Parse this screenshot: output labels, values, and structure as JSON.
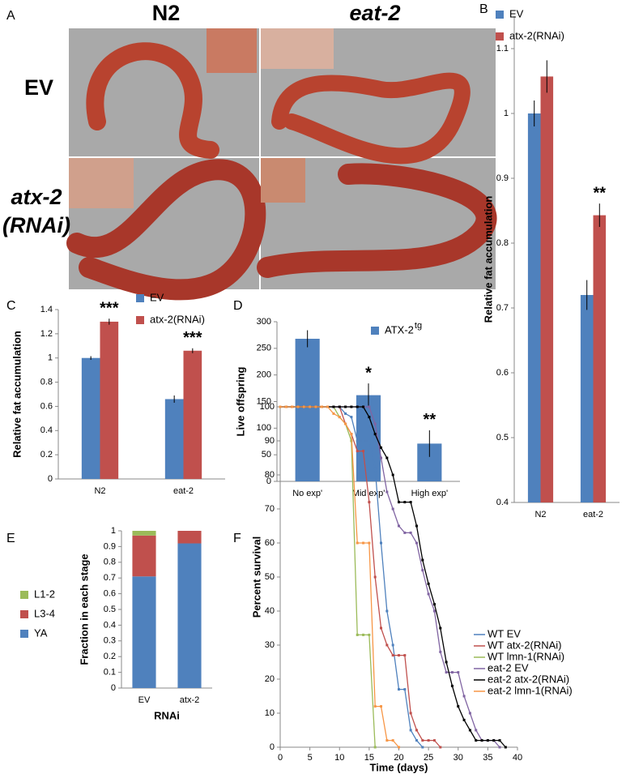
{
  "panel_a": {
    "panel": "A",
    "columns": [
      "N2",
      "eat-2"
    ],
    "rows": [
      [
        "EV"
      ],
      [
        "atx-2",
        "(RNAi)"
      ]
    ]
  },
  "chart_data": [
    {
      "panel": "B",
      "type": "bar",
      "ylabel": "Relative fat accumulation",
      "categories": [
        "N2",
        "eat-2"
      ],
      "series": [
        {
          "name": "EV",
          "color": "#4f81bd",
          "values": [
            1.0,
            0.72
          ],
          "errors": [
            0.02,
            0.023
          ]
        },
        {
          "name": "atx-2(RNAi)",
          "color": "#c0504d",
          "values": [
            1.057,
            0.843
          ],
          "errors": [
            0.025,
            0.018
          ],
          "annotations": [
            null,
            "**"
          ]
        }
      ],
      "ylim": [
        0.4,
        1.15
      ],
      "yticks": [
        0.4,
        0.5,
        0.6,
        0.7,
        0.8,
        0.9,
        1,
        1.1
      ]
    },
    {
      "panel": "C",
      "type": "bar",
      "ylabel": "Relative fat accumulation",
      "categories": [
        "N2",
        "eat-2"
      ],
      "series": [
        {
          "name": "EV",
          "color": "#4f81bd",
          "values": [
            1.0,
            0.66
          ],
          "errors": [
            0.015,
            0.03
          ]
        },
        {
          "name": "atx-2(RNAi)",
          "color": "#c0504d",
          "values": [
            1.3,
            1.06
          ],
          "errors": [
            0.025,
            0.02
          ],
          "annotations": [
            "***",
            "***"
          ]
        }
      ],
      "ylim": [
        0,
        1.4
      ],
      "yticks": [
        0,
        0.2,
        0.4,
        0.6,
        0.8,
        1,
        1.2,
        1.4
      ]
    },
    {
      "panel": "D",
      "type": "bar",
      "ylabel": "Live offspring",
      "categories": [
        "No exp'",
        "Mid exp'",
        "High exp'"
      ],
      "series": [
        {
          "name": "ATX-2",
          "name_superscript": "tg",
          "color": "#4f81bd",
          "values": [
            268,
            162,
            71
          ],
          "errors": [
            16,
            22,
            25
          ],
          "annotations": [
            null,
            "*",
            "**"
          ]
        }
      ],
      "ylim": [
        0,
        300
      ],
      "yticks": [
        0,
        50,
        100,
        150,
        200,
        250,
        300
      ]
    },
    {
      "panel": "E",
      "type": "stacked-bar",
      "ylabel": "Fraction in each stage",
      "xlabel": "RNAi",
      "categories": [
        "EV",
        "atx-2"
      ],
      "series": [
        {
          "name": "YA",
          "color": "#4f81bd",
          "values": [
            0.71,
            0.92
          ]
        },
        {
          "name": "L3-4",
          "color": "#c0504d",
          "values": [
            0.26,
            0.08
          ]
        },
        {
          "name": "L1-2",
          "color": "#9bbb59",
          "values": [
            0.03,
            0
          ]
        }
      ],
      "ylim": [
        0,
        1
      ],
      "yticks": [
        0,
        0.1,
        0.2,
        0.3,
        0.4,
        0.5,
        0.6,
        0.7,
        0.8,
        0.9,
        1
      ]
    },
    {
      "panel": "F",
      "type": "line",
      "ylabel": "Percent survival",
      "xlabel": "Time (days)",
      "x": [
        0,
        1,
        2,
        3,
        4,
        5,
        6,
        7,
        8,
        9,
        10,
        11,
        12,
        13,
        14,
        15,
        16,
        17,
        18,
        19,
        20,
        21,
        22,
        23,
        24,
        25,
        26,
        27,
        28,
        29,
        30,
        31,
        32,
        33,
        34,
        35,
        36,
        37,
        38
      ],
      "series": [
        {
          "name": "WT EV",
          "color": "#4f81bd",
          "values": [
            100,
            100,
            100,
            100,
            100,
            100,
            100,
            100,
            100,
            100,
            100,
            98,
            97,
            90,
            90,
            90,
            82,
            60,
            40,
            30,
            17,
            17,
            5,
            2,
            0,
            null,
            null,
            null,
            null,
            null,
            null,
            null,
            null,
            null,
            null,
            null,
            null,
            null,
            null
          ]
        },
        {
          "name": "WT atx-2(RNAi)",
          "color": "#c0504d",
          "values": [
            100,
            100,
            100,
            100,
            100,
            100,
            100,
            100,
            100,
            100,
            100,
            95,
            92,
            87,
            87,
            72,
            50,
            35,
            30,
            27,
            27,
            27,
            10,
            5,
            2,
            2,
            2,
            0,
            null,
            null,
            null,
            null,
            null,
            null,
            null,
            null,
            null,
            null,
            null
          ]
        },
        {
          "name": "WT lmn-1(RNAi)",
          "color": "#9bbb59",
          "values": [
            100,
            100,
            100,
            100,
            100,
            100,
            100,
            100,
            100,
            100,
            97,
            95,
            90,
            33,
            33,
            33,
            0,
            null,
            null,
            null,
            null,
            null,
            null,
            null,
            null,
            null,
            null,
            null,
            null,
            null,
            null,
            null,
            null,
            null,
            null,
            null,
            null,
            null,
            null
          ]
        },
        {
          "name": "eat-2 EV",
          "color": "#8064a2",
          "values": [
            100,
            100,
            100,
            100,
            100,
            100,
            100,
            100,
            100,
            100,
            100,
            100,
            100,
            100,
            100,
            100,
            95,
            85,
            75,
            70,
            65,
            63,
            63,
            60,
            52,
            45,
            40,
            28,
            22,
            22,
            22,
            15,
            10,
            5,
            2,
            2,
            2,
            0,
            null
          ]
        },
        {
          "name": "eat-2 atx-2(RNAi)",
          "color": "#000000",
          "values": [
            100,
            100,
            100,
            100,
            100,
            100,
            100,
            100,
            100,
            100,
            100,
            100,
            100,
            100,
            100,
            97,
            92,
            88,
            85,
            80,
            72,
            72,
            72,
            65,
            55,
            48,
            42,
            35,
            25,
            18,
            12,
            8,
            5,
            2,
            2,
            2,
            2,
            2,
            0
          ]
        },
        {
          "name": "eat-2 lmn-1(RNAi)",
          "color": "#f79646",
          "values": [
            100,
            100,
            100,
            100,
            100,
            100,
            100,
            100,
            100,
            98,
            97,
            95,
            92,
            60,
            60,
            60,
            12,
            12,
            2,
            2,
            0,
            null,
            null,
            null,
            null,
            null,
            null,
            null,
            null,
            null,
            null,
            null,
            null,
            null,
            null,
            null,
            null,
            null,
            null
          ]
        }
      ],
      "xlim": [
        0,
        40
      ],
      "xticks": [
        0,
        5,
        10,
        15,
        20,
        25,
        30,
        35,
        40
      ],
      "ylim": [
        0,
        100
      ],
      "yticks": [
        0,
        10,
        20,
        30,
        40,
        50,
        60,
        70,
        80,
        90,
        100
      ]
    }
  ]
}
